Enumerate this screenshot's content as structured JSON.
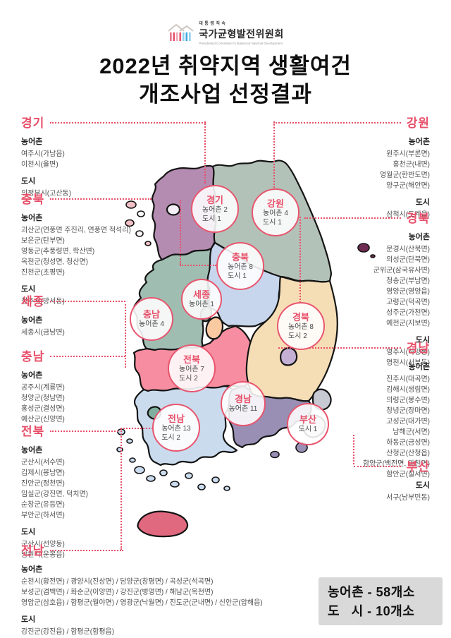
{
  "header": {
    "logo_top": "대통령직속",
    "logo_org": "국가균형발전위원회",
    "logo_sub": "Presidential Committee for Balanced National Development",
    "title_line1": "2022년 취약지역 생활여건",
    "title_line2": "개조사업 선정결과"
  },
  "labels": {
    "farm": "농어촌",
    "city": "도시"
  },
  "regions": {
    "gyeonggi": {
      "title": "경기",
      "farm": [
        "여주시(가남읍)",
        "이천시(율면)"
      ],
      "city": [
        "의정부시(고산동)"
      ]
    },
    "chungbuk": {
      "title": "충북",
      "farm": [
        "괴산군(연풍면 주진리, 연풍면 적석리)",
        "보은군(탄부면)",
        "영동군(추풍령면, 학산면)",
        "옥천군(청성면, 청산면)",
        "진천군(초평면)"
      ],
      "city": [
        "청주시(방서동)"
      ]
    },
    "sejong": {
      "title": "세종",
      "farm": [
        "세종시(금남면)"
      ]
    },
    "chungnam": {
      "title": "충남",
      "farm": [
        "공주시(계룡면)",
        "청양군(청남면)",
        "홍성군(결성면)",
        "예산군(신양면)"
      ]
    },
    "jeonbuk": {
      "title": "전북",
      "farm": [
        "군산시(서수면)",
        "김제시(봉남면)",
        "진안군(정천면)",
        "임실군(강진면, 덕치면)",
        "순창군(유등면)",
        "부안군(하서면)"
      ],
      "city": [
        "군산시(선양동)",
        "남원시(운봉읍)"
      ]
    },
    "jeonnam": {
      "title": "전남",
      "farm_lines": [
        "순천시(황전면) / 광양시(진상면) / 담양군(창평면) / 곡성군(석곡면)",
        "보성군(겸백면) / 화순군(이양면) / 강진군(병영면) / 해남군(옥천면)",
        "영암군(삼호읍) / 함평군(월야면) / 영광군(낙월면) / 진도군(군내면) / 신안군(압해읍)"
      ],
      "city_lines": [
        "강진군(강진읍) / 함평군(함평읍)"
      ]
    },
    "gangwon": {
      "title": "강원",
      "farm": [
        "원주시(부론면)",
        "홍천군(내면)",
        "영월군(한반도면)",
        "양구군(해안면)"
      ],
      "city": [
        "삼척시(도계읍)"
      ]
    },
    "gyeongbuk": {
      "title": "경북",
      "farm": [
        "문경시(산북면)",
        "의성군(단북면)",
        "군위군(삼국유사면)",
        "청송군(부남면)",
        "영양군(영양읍)",
        "고령군(덕곡면)",
        "성주군(가천면)",
        "예천군(지보면)"
      ],
      "city": [
        "영주시(하망동)",
        "영천시(서부동)"
      ]
    },
    "gyeongnam": {
      "title": "경남",
      "farm": [
        "진주시(대곡면)",
        "김해시(생림면)",
        "의령군(봉수면)",
        "창녕군(장마면)",
        "고성군(대가면)",
        "남해군(서면)",
        "하동군(금성면)",
        "산청군(산청읍)",
        "함양군(백전면, 마천면)",
        "함안군(칠서면)"
      ]
    },
    "busan": {
      "title": "부산",
      "city": [
        "서구(남부민동)"
      ]
    }
  },
  "map_badges": {
    "gyeonggi": {
      "name": "경기",
      "lines": [
        "농어촌 2",
        "도시 1"
      ]
    },
    "gangwon": {
      "name": "강원",
      "lines": [
        "농어촌 4",
        "도시 1"
      ]
    },
    "chungbuk": {
      "name": "충북",
      "lines": [
        "농어촌 8",
        "도시 1"
      ]
    },
    "sejong": {
      "name": "세종",
      "lines": [
        "농어촌 1"
      ]
    },
    "chungnam": {
      "name": "충남",
      "lines": [
        "농어촌 4"
      ]
    },
    "gyeongbuk": {
      "name": "경북",
      "lines": [
        "농어촌 8",
        "도시 2"
      ]
    },
    "jeonbuk": {
      "name": "전북",
      "lines": [
        "농어촌 7",
        "도시 2"
      ]
    },
    "gyeongnam": {
      "name": "경남",
      "lines": [
        "농어촌 11"
      ]
    },
    "jeonnam": {
      "name": "전남",
      "lines": [
        "농어촌 13",
        "도시 2"
      ]
    },
    "busan": {
      "name": "부산",
      "lines": [
        "도시 1"
      ]
    }
  },
  "summary": {
    "farm": "농어촌 - 58개소",
    "city": "도   시 - 10개소"
  },
  "colors": {
    "accent": "#e8506a",
    "gyeonggi": "#b58cb1",
    "seoul": "#f4eef6",
    "gangwon": "#b3c2b8",
    "chungbuk": "#c7d6ec",
    "sejong": "#7b9083",
    "daejeon": "#f9c9a2",
    "chungnam": "#a0bdb2",
    "gyeongbuk": "#f5ddb5",
    "daegu": "#c4b0d4",
    "jeonbuk": "#f78da0",
    "jeonnam": "#cadbee",
    "gwangju": "#80af9f",
    "gyeongnam": "#998fb4",
    "busan": "#dadae0",
    "ulsan": "#c7cad3",
    "jeju": "#e0697f",
    "ulleung": "#6f2b52",
    "island_pink": "#f2bfc6",
    "island_white": "#fbf7f8"
  }
}
